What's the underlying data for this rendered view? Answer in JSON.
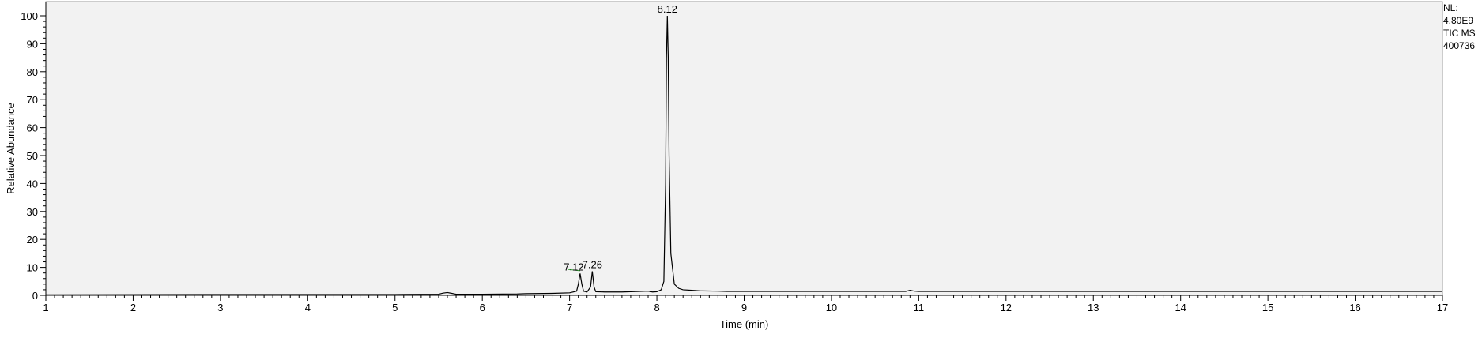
{
  "side_info": {
    "nl_label": "NL:",
    "nl_value": "4.80E9",
    "trace_label": "TIC  MS",
    "file_id": "400736"
  },
  "colors": {
    "plot_background": "#f2f2f2",
    "trace": "#000000",
    "baseline_marker": "#2e9e2e"
  },
  "chart_data": {
    "type": "line",
    "title": "",
    "xlabel": "Time (min)",
    "ylabel": "Relative Abundance",
    "xlim": [
      1,
      17
    ],
    "ylim": [
      0,
      100
    ],
    "xticks": [
      "1",
      "2",
      "3",
      "4",
      "5",
      "6",
      "7",
      "8",
      "9",
      "10",
      "11",
      "12",
      "13",
      "14",
      "15",
      "16",
      "17"
    ],
    "yticks": [
      "0",
      "10",
      "20",
      "30",
      "40",
      "50",
      "60",
      "70",
      "80",
      "90",
      "100"
    ],
    "grid": false,
    "series": [
      {
        "x": [
          1.0,
          3.0,
          5.0,
          5.5,
          5.55,
          5.6,
          5.65,
          5.7,
          6.0,
          6.4,
          6.5,
          6.8,
          7.0,
          7.08,
          7.1,
          7.12,
          7.14,
          7.16,
          7.2,
          7.24,
          7.26,
          7.28,
          7.3,
          7.4,
          7.6,
          7.9,
          7.95,
          8.0,
          8.05,
          8.08,
          8.1,
          8.11,
          8.12,
          8.13,
          8.14,
          8.16,
          8.2,
          8.25,
          8.3,
          8.4,
          8.5,
          8.7,
          8.8,
          9.0,
          10.0,
          10.85,
          10.9,
          10.95,
          11.0,
          12.0,
          14.0,
          17.0
        ],
        "y": [
          0.2,
          0.3,
          0.3,
          0.4,
          0.8,
          1.0,
          0.7,
          0.4,
          0.4,
          0.5,
          0.6,
          0.7,
          0.9,
          1.5,
          4.0,
          7.8,
          4.0,
          1.5,
          1.2,
          3.0,
          8.6,
          3.0,
          1.3,
          1.2,
          1.2,
          1.5,
          1.2,
          1.3,
          2.0,
          5.0,
          40.0,
          85.0,
          100.0,
          85.0,
          50.0,
          15.0,
          4.0,
          2.5,
          2.0,
          1.8,
          1.6,
          1.5,
          1.4,
          1.4,
          1.4,
          1.4,
          1.8,
          1.5,
          1.4,
          1.4,
          1.4,
          1.4
        ]
      }
    ],
    "peak_labels": [
      {
        "x": 7.12,
        "y": 7.8,
        "label": "7.12"
      },
      {
        "x": 7.26,
        "y": 8.6,
        "label": "7.26"
      },
      {
        "x": 8.12,
        "y": 100.0,
        "label": "8.12"
      }
    ]
  }
}
